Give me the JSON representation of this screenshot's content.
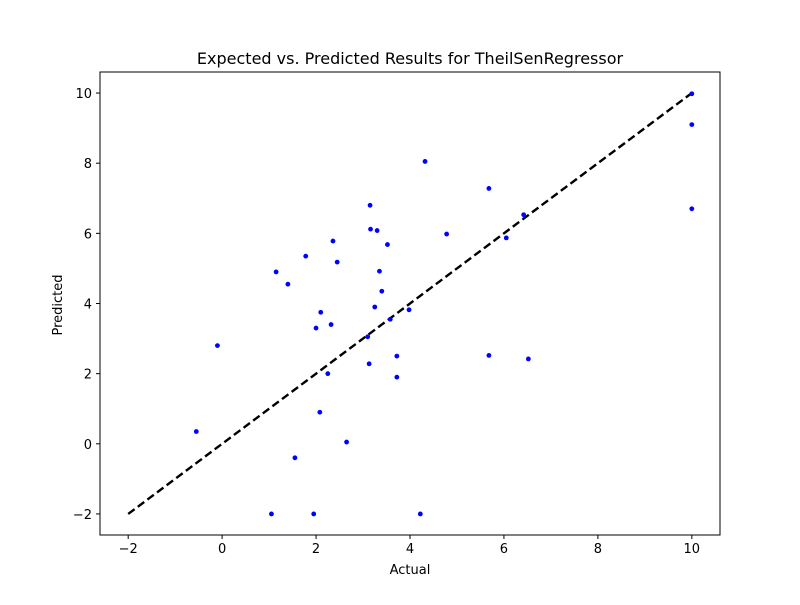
{
  "chart_data": {
    "type": "scatter",
    "title": "Expected vs. Predicted Results for TheilSenRegressor",
    "xlabel": "Actual",
    "ylabel": "Predicted",
    "xlim": [
      -2.6,
      10.6
    ],
    "ylim": [
      -2.6,
      10.6
    ],
    "x_ticks": [
      -2,
      0,
      2,
      4,
      6,
      8,
      10
    ],
    "y_ticks": [
      -2,
      0,
      2,
      4,
      6,
      8,
      10
    ],
    "x_tick_labels": [
      "−2",
      "0",
      "2",
      "4",
      "6",
      "8",
      "10"
    ],
    "y_tick_labels": [
      "−2",
      "0",
      "2",
      "4",
      "6",
      "8",
      "10"
    ],
    "grid": false,
    "legend": "none",
    "point_color": "#0000ff",
    "reference_line": {
      "style": "dashed",
      "color": "#000000",
      "from": [
        -2,
        -2
      ],
      "to": [
        10,
        10
      ]
    },
    "points": [
      {
        "x": -0.55,
        "y": 0.35
      },
      {
        "x": -0.1,
        "y": 2.8
      },
      {
        "x": 1.05,
        "y": -2.0
      },
      {
        "x": 1.15,
        "y": 4.9
      },
      {
        "x": 1.4,
        "y": 4.55
      },
      {
        "x": 1.55,
        "y": -0.4
      },
      {
        "x": 1.78,
        "y": 5.35
      },
      {
        "x": 1.95,
        "y": -2.0
      },
      {
        "x": 2.0,
        "y": 3.3
      },
      {
        "x": 2.08,
        "y": 0.9
      },
      {
        "x": 2.1,
        "y": 3.75
      },
      {
        "x": 2.25,
        "y": 2.0
      },
      {
        "x": 2.32,
        "y": 3.4
      },
      {
        "x": 2.36,
        "y": 5.78
      },
      {
        "x": 2.45,
        "y": 5.18
      },
      {
        "x": 2.65,
        "y": 0.05
      },
      {
        "x": 3.1,
        "y": 3.05
      },
      {
        "x": 3.13,
        "y": 2.28
      },
      {
        "x": 3.15,
        "y": 6.8
      },
      {
        "x": 3.16,
        "y": 6.12
      },
      {
        "x": 3.25,
        "y": 3.9
      },
      {
        "x": 3.3,
        "y": 6.08
      },
      {
        "x": 3.35,
        "y": 4.92
      },
      {
        "x": 3.4,
        "y": 4.35
      },
      {
        "x": 3.52,
        "y": 5.68
      },
      {
        "x": 3.58,
        "y": 3.55
      },
      {
        "x": 3.72,
        "y": 2.5
      },
      {
        "x": 3.72,
        "y": 1.9
      },
      {
        "x": 3.98,
        "y": 3.82
      },
      {
        "x": 4.22,
        "y": -2.0
      },
      {
        "x": 4.32,
        "y": 8.05
      },
      {
        "x": 4.78,
        "y": 5.98
      },
      {
        "x": 5.68,
        "y": 7.28
      },
      {
        "x": 5.68,
        "y": 2.52
      },
      {
        "x": 6.05,
        "y": 5.87
      },
      {
        "x": 6.42,
        "y": 6.53
      },
      {
        "x": 6.52,
        "y": 2.42
      },
      {
        "x": 10.0,
        "y": 9.98
      },
      {
        "x": 10.0,
        "y": 9.1
      },
      {
        "x": 10.0,
        "y": 6.7
      }
    ]
  }
}
